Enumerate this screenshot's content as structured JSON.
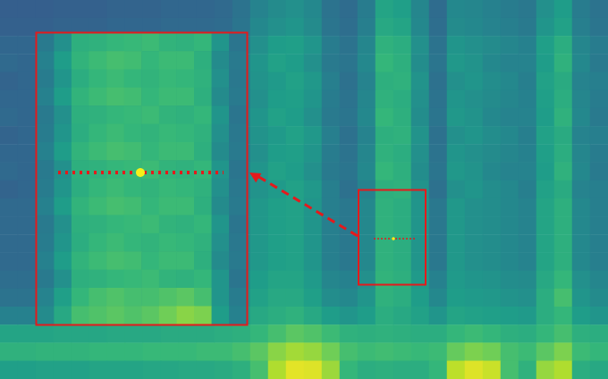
{
  "chart_data": [
    {
      "type": "heatmap",
      "tick_labels": false,
      "zlim": [
        0,
        1
      ],
      "cells": [
        [
          0.3,
          0.3,
          0.3,
          0.31,
          0.31,
          0.31,
          0.32,
          0.32,
          0.32,
          0.33,
          0.33,
          0.33,
          0.34,
          0.38,
          0.45,
          0.48,
          0.5,
          0.47,
          0.38,
          0.35,
          0.42,
          0.58,
          0.56,
          0.46,
          0.35,
          0.47,
          0.46,
          0.44,
          0.42,
          0.4,
          0.5,
          0.55,
          0.42,
          0.38
        ],
        [
          0.31,
          0.31,
          0.31,
          0.32,
          0.32,
          0.32,
          0.33,
          0.33,
          0.33,
          0.34,
          0.34,
          0.34,
          0.35,
          0.39,
          0.47,
          0.5,
          0.52,
          0.48,
          0.39,
          0.36,
          0.43,
          0.6,
          0.58,
          0.47,
          0.36,
          0.48,
          0.47,
          0.45,
          0.43,
          0.41,
          0.52,
          0.57,
          0.43,
          0.39
        ],
        [
          0.33,
          0.33,
          0.33,
          0.34,
          0.34,
          0.34,
          0.35,
          0.35,
          0.35,
          0.36,
          0.36,
          0.37,
          0.38,
          0.42,
          0.5,
          0.55,
          0.56,
          0.52,
          0.42,
          0.38,
          0.46,
          0.64,
          0.62,
          0.5,
          0.38,
          0.52,
          0.5,
          0.48,
          0.46,
          0.44,
          0.56,
          0.62,
          0.46,
          0.42
        ],
        [
          0.34,
          0.33,
          0.34,
          0.34,
          0.35,
          0.35,
          0.35,
          0.36,
          0.36,
          0.36,
          0.37,
          0.37,
          0.39,
          0.44,
          0.52,
          0.57,
          0.55,
          0.5,
          0.41,
          0.39,
          0.47,
          0.66,
          0.63,
          0.49,
          0.39,
          0.53,
          0.51,
          0.47,
          0.45,
          0.45,
          0.55,
          0.64,
          0.47,
          0.41
        ],
        [
          0.32,
          0.33,
          0.33,
          0.33,
          0.34,
          0.35,
          0.34,
          0.35,
          0.36,
          0.37,
          0.36,
          0.38,
          0.39,
          0.43,
          0.51,
          0.54,
          0.57,
          0.53,
          0.43,
          0.37,
          0.45,
          0.63,
          0.64,
          0.51,
          0.37,
          0.5,
          0.52,
          0.49,
          0.47,
          0.43,
          0.57,
          0.61,
          0.45,
          0.43
        ],
        [
          0.33,
          0.33,
          0.33,
          0.34,
          0.34,
          0.34,
          0.35,
          0.35,
          0.35,
          0.36,
          0.36,
          0.37,
          0.38,
          0.42,
          0.5,
          0.55,
          0.56,
          0.52,
          0.42,
          0.38,
          0.46,
          0.64,
          0.62,
          0.5,
          0.38,
          0.52,
          0.5,
          0.48,
          0.46,
          0.44,
          0.56,
          0.62,
          0.46,
          0.42
        ],
        [
          0.34,
          0.33,
          0.34,
          0.34,
          0.35,
          0.35,
          0.35,
          0.36,
          0.36,
          0.36,
          0.37,
          0.37,
          0.39,
          0.44,
          0.52,
          0.57,
          0.55,
          0.5,
          0.41,
          0.39,
          0.47,
          0.66,
          0.63,
          0.49,
          0.39,
          0.53,
          0.51,
          0.47,
          0.45,
          0.45,
          0.55,
          0.64,
          0.47,
          0.41
        ],
        [
          0.32,
          0.33,
          0.33,
          0.33,
          0.34,
          0.35,
          0.34,
          0.35,
          0.36,
          0.37,
          0.36,
          0.38,
          0.39,
          0.43,
          0.51,
          0.54,
          0.57,
          0.53,
          0.43,
          0.37,
          0.45,
          0.63,
          0.64,
          0.51,
          0.37,
          0.5,
          0.52,
          0.49,
          0.47,
          0.43,
          0.57,
          0.61,
          0.45,
          0.43
        ],
        [
          0.33,
          0.33,
          0.33,
          0.34,
          0.34,
          0.34,
          0.35,
          0.35,
          0.35,
          0.36,
          0.36,
          0.37,
          0.38,
          0.42,
          0.5,
          0.55,
          0.56,
          0.52,
          0.42,
          0.38,
          0.46,
          0.64,
          0.62,
          0.5,
          0.38,
          0.52,
          0.5,
          0.48,
          0.46,
          0.44,
          0.56,
          0.62,
          0.46,
          0.42
        ],
        [
          0.34,
          0.33,
          0.34,
          0.34,
          0.35,
          0.35,
          0.35,
          0.36,
          0.36,
          0.36,
          0.37,
          0.37,
          0.39,
          0.44,
          0.52,
          0.57,
          0.55,
          0.5,
          0.41,
          0.39,
          0.47,
          0.66,
          0.63,
          0.49,
          0.39,
          0.53,
          0.51,
          0.47,
          0.45,
          0.45,
          0.55,
          0.64,
          0.47,
          0.41
        ],
        [
          0.32,
          0.33,
          0.33,
          0.33,
          0.34,
          0.35,
          0.34,
          0.35,
          0.36,
          0.37,
          0.36,
          0.38,
          0.39,
          0.43,
          0.51,
          0.54,
          0.57,
          0.53,
          0.43,
          0.37,
          0.45,
          0.63,
          0.64,
          0.51,
          0.37,
          0.5,
          0.52,
          0.49,
          0.47,
          0.43,
          0.57,
          0.61,
          0.45,
          0.43
        ],
        [
          0.34,
          0.34,
          0.35,
          0.35,
          0.36,
          0.36,
          0.37,
          0.37,
          0.38,
          0.39,
          0.4,
          0.41,
          0.42,
          0.46,
          0.53,
          0.56,
          0.57,
          0.52,
          0.43,
          0.4,
          0.47,
          0.64,
          0.62,
          0.52,
          0.4,
          0.53,
          0.5,
          0.49,
          0.47,
          0.45,
          0.58,
          0.63,
          0.47,
          0.43
        ],
        [
          0.34,
          0.34,
          0.35,
          0.35,
          0.36,
          0.36,
          0.37,
          0.37,
          0.38,
          0.39,
          0.4,
          0.41,
          0.42,
          0.46,
          0.53,
          0.56,
          0.57,
          0.52,
          0.43,
          0.4,
          0.47,
          0.64,
          0.62,
          0.52,
          0.4,
          0.53,
          0.5,
          0.49,
          0.47,
          0.45,
          0.58,
          0.63,
          0.47,
          0.43
        ],
        [
          0.34,
          0.34,
          0.35,
          0.35,
          0.36,
          0.36,
          0.37,
          0.37,
          0.38,
          0.39,
          0.4,
          0.41,
          0.42,
          0.46,
          0.53,
          0.56,
          0.57,
          0.52,
          0.43,
          0.4,
          0.47,
          0.64,
          0.62,
          0.52,
          0.4,
          0.53,
          0.5,
          0.49,
          0.47,
          0.45,
          0.58,
          0.63,
          0.47,
          0.43
        ],
        [
          0.34,
          0.34,
          0.35,
          0.35,
          0.36,
          0.36,
          0.37,
          0.37,
          0.38,
          0.39,
          0.4,
          0.41,
          0.42,
          0.46,
          0.53,
          0.56,
          0.57,
          0.52,
          0.43,
          0.4,
          0.47,
          0.64,
          0.62,
          0.52,
          0.4,
          0.53,
          0.5,
          0.49,
          0.47,
          0.45,
          0.58,
          0.63,
          0.47,
          0.43
        ],
        [
          0.36,
          0.36,
          0.37,
          0.37,
          0.38,
          0.38,
          0.39,
          0.39,
          0.4,
          0.41,
          0.42,
          0.43,
          0.44,
          0.48,
          0.55,
          0.58,
          0.58,
          0.54,
          0.46,
          0.44,
          0.5,
          0.65,
          0.63,
          0.54,
          0.44,
          0.54,
          0.52,
          0.51,
          0.49,
          0.48,
          0.6,
          0.66,
          0.5,
          0.46
        ],
        [
          0.38,
          0.38,
          0.39,
          0.39,
          0.4,
          0.4,
          0.41,
          0.41,
          0.42,
          0.43,
          0.44,
          0.45,
          0.46,
          0.5,
          0.57,
          0.6,
          0.6,
          0.56,
          0.49,
          0.47,
          0.52,
          0.64,
          0.62,
          0.55,
          0.47,
          0.55,
          0.54,
          0.53,
          0.51,
          0.5,
          0.62,
          0.7,
          0.52,
          0.48
        ],
        [
          0.44,
          0.44,
          0.45,
          0.45,
          0.46,
          0.46,
          0.47,
          0.47,
          0.48,
          0.48,
          0.49,
          0.5,
          0.51,
          0.54,
          0.6,
          0.62,
          0.64,
          0.6,
          0.55,
          0.52,
          0.55,
          0.62,
          0.6,
          0.57,
          0.52,
          0.58,
          0.57,
          0.56,
          0.55,
          0.54,
          0.62,
          0.66,
          0.55,
          0.52
        ],
        [
          0.58,
          0.58,
          0.58,
          0.59,
          0.59,
          0.59,
          0.6,
          0.6,
          0.6,
          0.61,
          0.61,
          0.61,
          0.62,
          0.63,
          0.66,
          0.7,
          0.74,
          0.72,
          0.68,
          0.64,
          0.63,
          0.64,
          0.63,
          0.62,
          0.62,
          0.66,
          0.68,
          0.66,
          0.63,
          0.62,
          0.66,
          0.7,
          0.63,
          0.62
        ],
        [
          0.64,
          0.64,
          0.65,
          0.65,
          0.65,
          0.66,
          0.66,
          0.66,
          0.67,
          0.67,
          0.67,
          0.68,
          0.68,
          0.7,
          0.74,
          0.82,
          0.86,
          0.84,
          0.78,
          0.7,
          0.68,
          0.69,
          0.68,
          0.67,
          0.68,
          0.76,
          0.8,
          0.78,
          0.7,
          0.68,
          0.74,
          0.8,
          0.68,
          0.66
        ],
        [
          0.56,
          0.56,
          0.57,
          0.57,
          0.57,
          0.58,
          0.58,
          0.58,
          0.59,
          0.59,
          0.6,
          0.6,
          0.61,
          0.63,
          0.7,
          0.88,
          0.96,
          0.95,
          0.85,
          0.66,
          0.62,
          0.63,
          0.62,
          0.62,
          0.66,
          0.9,
          0.95,
          0.92,
          0.7,
          0.64,
          0.84,
          0.88,
          0.62,
          0.6
        ]
      ]
    },
    {
      "type": "heatmap",
      "tick_labels": false,
      "zlim": [
        0,
        1
      ],
      "cells": [
        [
          0.41,
          0.5,
          0.63,
          0.64,
          0.66,
          0.67,
          0.68,
          0.65,
          0.64,
          0.66,
          0.52,
          0.39
        ],
        [
          0.44,
          0.55,
          0.65,
          0.68,
          0.7,
          0.69,
          0.66,
          0.68,
          0.68,
          0.63,
          0.48,
          0.41
        ],
        [
          0.42,
          0.52,
          0.62,
          0.66,
          0.68,
          0.66,
          0.65,
          0.67,
          0.66,
          0.64,
          0.5,
          0.4
        ],
        [
          0.44,
          0.55,
          0.65,
          0.68,
          0.7,
          0.69,
          0.66,
          0.68,
          0.68,
          0.63,
          0.48,
          0.41
        ],
        [
          0.41,
          0.5,
          0.63,
          0.64,
          0.66,
          0.67,
          0.68,
          0.65,
          0.64,
          0.66,
          0.52,
          0.39
        ],
        [
          0.42,
          0.52,
          0.62,
          0.66,
          0.68,
          0.66,
          0.65,
          0.67,
          0.66,
          0.64,
          0.5,
          0.4
        ],
        [
          0.44,
          0.55,
          0.65,
          0.68,
          0.7,
          0.69,
          0.66,
          0.68,
          0.68,
          0.63,
          0.48,
          0.41
        ],
        [
          0.41,
          0.5,
          0.63,
          0.64,
          0.66,
          0.67,
          0.68,
          0.65,
          0.64,
          0.66,
          0.52,
          0.39
        ],
        [
          0.42,
          0.52,
          0.62,
          0.66,
          0.68,
          0.66,
          0.65,
          0.67,
          0.66,
          0.64,
          0.5,
          0.4
        ],
        [
          0.44,
          0.55,
          0.65,
          0.68,
          0.7,
          0.69,
          0.66,
          0.68,
          0.68,
          0.63,
          0.48,
          0.41
        ],
        [
          0.41,
          0.5,
          0.63,
          0.64,
          0.66,
          0.67,
          0.68,
          0.65,
          0.64,
          0.66,
          0.52,
          0.39
        ],
        [
          0.42,
          0.52,
          0.62,
          0.66,
          0.68,
          0.66,
          0.65,
          0.67,
          0.66,
          0.64,
          0.5,
          0.4
        ],
        [
          0.44,
          0.55,
          0.65,
          0.68,
          0.7,
          0.69,
          0.66,
          0.68,
          0.68,
          0.63,
          0.48,
          0.41
        ],
        [
          0.41,
          0.5,
          0.63,
          0.64,
          0.66,
          0.67,
          0.68,
          0.65,
          0.64,
          0.66,
          0.52,
          0.39
        ],
        [
          0.45,
          0.56,
          0.66,
          0.7,
          0.72,
          0.7,
          0.7,
          0.72,
          0.74,
          0.7,
          0.52,
          0.42
        ],
        [
          0.48,
          0.6,
          0.7,
          0.72,
          0.74,
          0.72,
          0.74,
          0.78,
          0.82,
          0.8,
          0.55,
          0.44
        ]
      ]
    }
  ]
}
